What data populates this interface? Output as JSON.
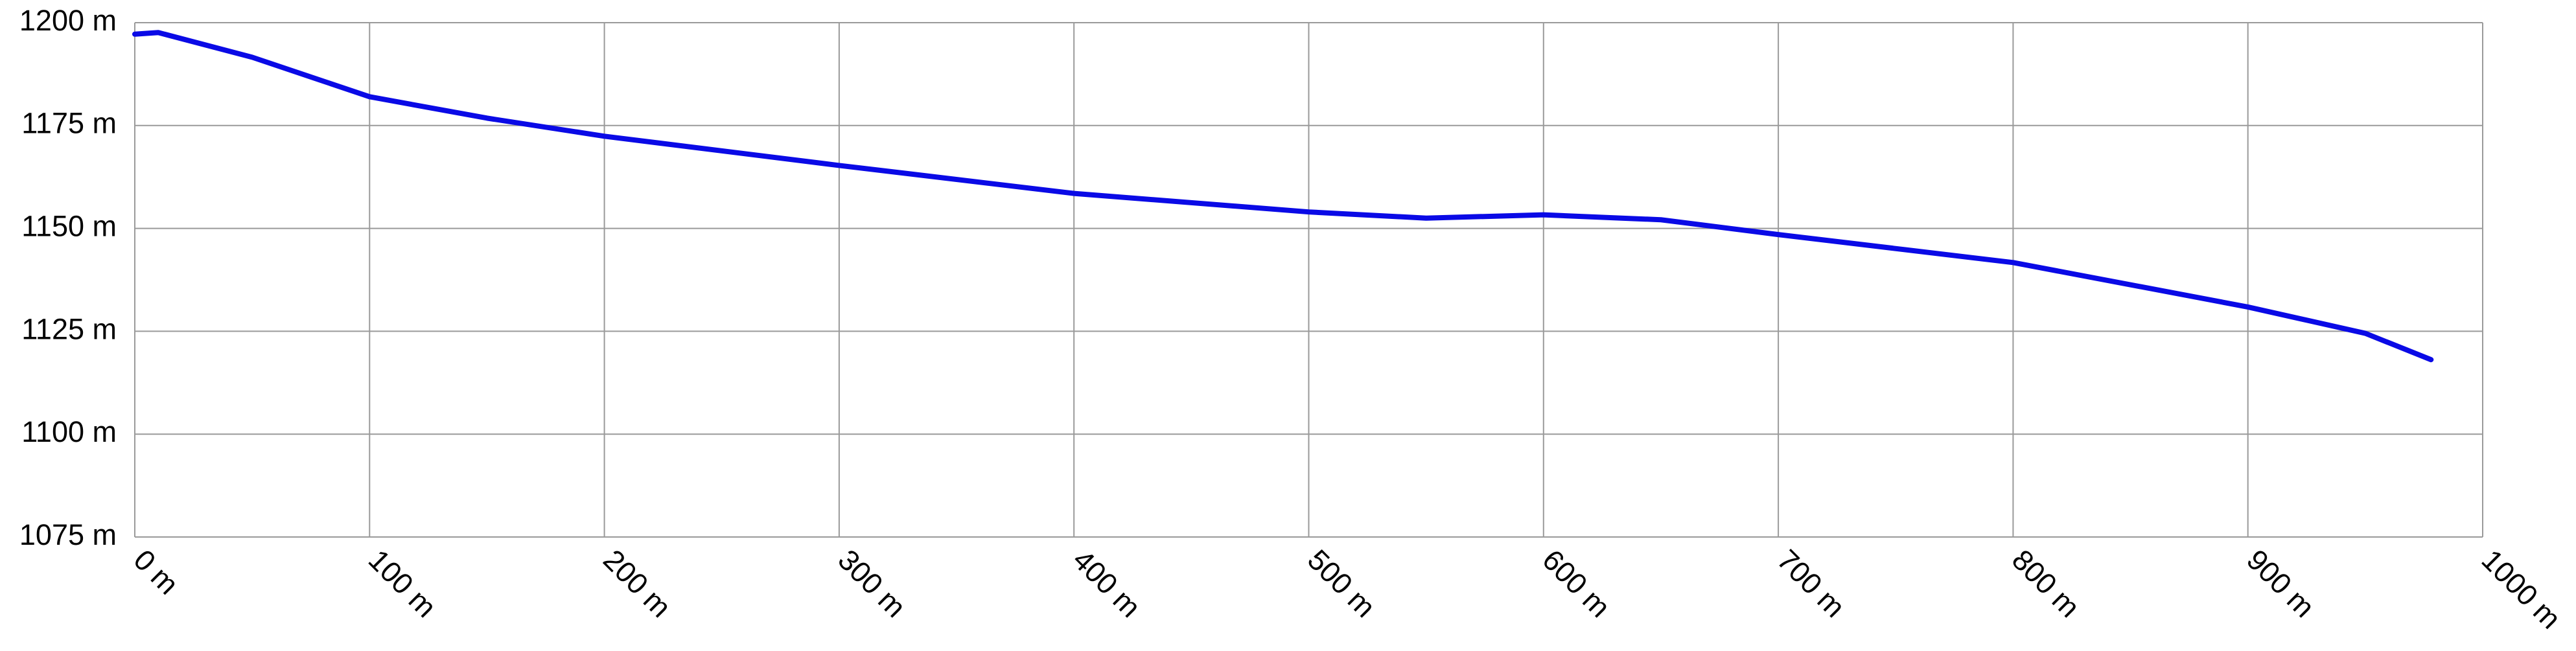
{
  "chart_data": {
    "type": "line",
    "x": [
      0,
      10,
      50,
      100,
      150,
      200,
      300,
      400,
      500,
      550,
      600,
      650,
      700,
      800,
      900,
      950,
      978
    ],
    "series": [
      {
        "color": "#0a0ae6",
        "values": [
          1197.2,
          1197.6,
          1191.6,
          1182,
          1176.8,
          1172.4,
          1165.3,
          1158.5,
          1154,
          1152.5,
          1153.3,
          1152.1,
          1148.5,
          1141.7,
          1130.9,
          1124.5,
          1118.1
        ]
      }
    ],
    "xlim": [
      0,
      1000
    ],
    "xticks": [
      {
        "value": 0,
        "label": "0 m"
      },
      {
        "value": 100,
        "label": "100 m"
      },
      {
        "value": 200,
        "label": "200 m"
      },
      {
        "value": 300,
        "label": "300 m"
      },
      {
        "value": 400,
        "label": "400 m"
      },
      {
        "value": 500,
        "label": "500 m"
      },
      {
        "value": 600,
        "label": "600 m"
      },
      {
        "value": 700,
        "label": "700 m"
      },
      {
        "value": 800,
        "label": "800 m"
      },
      {
        "value": 900,
        "label": "900 m"
      },
      {
        "value": 1000,
        "label": "1000 m"
      }
    ],
    "ylim": [
      1075,
      1200
    ],
    "yticks": [
      {
        "value": 1075,
        "label": "1075 m"
      },
      {
        "value": 1100,
        "label": "1100 m"
      },
      {
        "value": 1125,
        "label": "1125 m"
      },
      {
        "value": 1150,
        "label": "1150 m"
      },
      {
        "value": 1175,
        "label": "1175 m"
      },
      {
        "value": 1200,
        "label": "1200 m"
      }
    ],
    "grid": true
  }
}
